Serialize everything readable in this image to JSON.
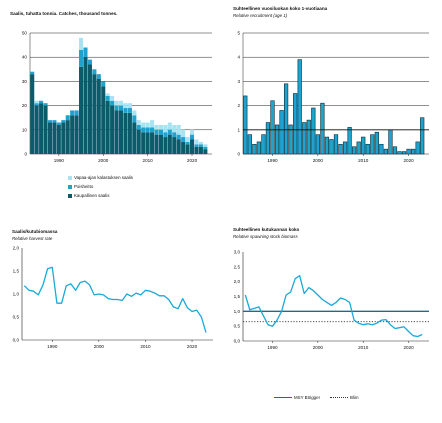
{
  "colors": {
    "commercial": "#0b5b6b",
    "discards": "#1fa2cc",
    "recreational": "#a8e3f1",
    "line": "#1aa9d8",
    "msy": "#1f6b8a",
    "blim": "#333333",
    "grid": "#222222"
  },
  "legends": {
    "catch": [
      "Vapaa-ajan kalastuksen saalis",
      "Poisheitto",
      "Kaupallinen saalis"
    ],
    "ssb": [
      "MSY Btrigger",
      "Blim"
    ]
  },
  "chart_data": [
    {
      "id": "catch",
      "type": "bar",
      "title": "Saalis, tuhatta tonnia. Catches, thousand tonnes.",
      "subtitle": "",
      "ylim": [
        0,
        50
      ],
      "yticks": [
        "0",
        "10",
        "20",
        "30",
        "40",
        "50"
      ],
      "xticks": [
        "1990",
        "2000",
        "2010",
        "2020"
      ],
      "xrange": [
        1983.5,
        2024.5
      ],
      "years": [
        1984,
        1985,
        1986,
        1987,
        1988,
        1989,
        1990,
        1991,
        1992,
        1993,
        1994,
        1995,
        1996,
        1997,
        1998,
        1999,
        2000,
        2001,
        2002,
        2003,
        2004,
        2005,
        2006,
        2007,
        2008,
        2009,
        2010,
        2011,
        2012,
        2013,
        2014,
        2015,
        2016,
        2017,
        2018,
        2019,
        2020,
        2021,
        2022,
        2023
      ],
      "series": [
        {
          "name": "Kaupallinen saalis",
          "values": [
            33,
            20,
            21,
            20,
            13,
            13,
            12,
            13,
            14,
            16,
            16,
            36,
            40,
            37,
            33,
            31,
            28,
            22,
            20,
            18,
            18,
            17,
            17,
            13,
            10,
            9,
            9,
            9,
            8,
            8,
            7,
            8,
            7,
            6,
            5,
            4,
            6,
            3,
            3,
            2
          ]
        },
        {
          "name": "Poisheitto",
          "values": [
            1,
            1,
            1,
            1,
            1,
            1,
            1,
            1,
            2,
            2,
            2,
            7,
            4,
            2,
            2,
            2,
            2,
            2,
            2,
            2,
            2,
            2,
            2,
            3,
            2,
            2,
            2,
            2,
            2,
            2,
            2,
            2,
            2,
            2,
            2,
            1,
            2,
            1,
            1,
            1
          ]
        },
        {
          "name": "Vapaa-ajan kalastuksen saalis",
          "values": [
            0,
            1,
            0,
            0,
            0,
            0,
            0,
            0,
            0,
            0,
            0,
            5,
            0,
            0,
            0,
            0,
            0,
            1,
            2,
            2,
            2,
            2,
            2,
            2,
            2,
            2,
            2,
            3,
            2,
            2,
            3,
            3,
            3,
            4,
            3,
            2,
            2,
            2,
            1,
            1
          ]
        }
      ]
    },
    {
      "id": "recruitment",
      "type": "bar",
      "title": "Suhteellinen vuosiluokan koko 1-vuotiaana",
      "subtitle": "Relative recruitment (age 1)",
      "ylim": [
        0,
        5
      ],
      "yticks": [
        "0",
        "1",
        "2",
        "3",
        "4",
        "5"
      ],
      "xticks": [
        "1990",
        "2000",
        "2010",
        "2020"
      ],
      "xrange": [
        1983.5,
        2024.5
      ],
      "years": [
        1984,
        1985,
        1986,
        1987,
        1988,
        1989,
        1990,
        1991,
        1992,
        1993,
        1994,
        1995,
        1996,
        1997,
        1998,
        1999,
        2000,
        2001,
        2002,
        2003,
        2004,
        2005,
        2006,
        2007,
        2008,
        2009,
        2010,
        2011,
        2012,
        2013,
        2014,
        2015,
        2016,
        2017,
        2018,
        2019,
        2020,
        2021,
        2022,
        2023
      ],
      "values": [
        2.4,
        0.8,
        0.4,
        0.5,
        0.8,
        1.3,
        2.2,
        1.2,
        1.8,
        2.9,
        1.2,
        2.5,
        3.9,
        1.3,
        1.4,
        1.9,
        0.8,
        2.1,
        0.7,
        0.6,
        0.8,
        0.4,
        0.5,
        1.1,
        0.3,
        0.5,
        0.7,
        0.4,
        0.8,
        0.9,
        0.4,
        0.2,
        1.0,
        0.3,
        0.1,
        0.1,
        0.2,
        0.2,
        0.5,
        1.5
      ],
      "reference": 1
    },
    {
      "id": "harvest",
      "type": "line",
      "title": "Saalis/kutubiomassa",
      "subtitle": "Relative harvest rate",
      "ylim": [
        0,
        2
      ],
      "yticks": [
        "0,0",
        "0,5",
        "1,0",
        "1,5",
        "2,0"
      ],
      "xticks": [
        "1990",
        "2000",
        "2010",
        "2020"
      ],
      "xrange": [
        1983.5,
        2024.5
      ],
      "x": [
        1984,
        1985,
        1986,
        1987,
        1988,
        1989,
        1990,
        1991,
        1992,
        1993,
        1994,
        1995,
        1996,
        1997,
        1998,
        1999,
        2000,
        2001,
        2002,
        2003,
        2004,
        2005,
        2006,
        2007,
        2008,
        2009,
        2010,
        2011,
        2012,
        2013,
        2014,
        2015,
        2016,
        2017,
        2018,
        2019,
        2020,
        2021,
        2022,
        2023
      ],
      "y": [
        1.18,
        1.08,
        1.06,
        0.98,
        1.2,
        1.55,
        1.58,
        0.8,
        0.8,
        1.18,
        1.22,
        1.08,
        1.25,
        1.28,
        1.2,
        0.98,
        1.0,
        0.98,
        0.9,
        0.88,
        0.88,
        0.86,
        1.0,
        0.95,
        1.02,
        0.98,
        1.08,
        1.06,
        1.02,
        0.96,
        0.96,
        0.88,
        0.72,
        0.68,
        0.9,
        0.7,
        0.62,
        0.65,
        0.5,
        0.16
      ]
    },
    {
      "id": "ssb",
      "type": "line",
      "title": "Suhteellinen kutukannan koko",
      "subtitle": "Relative spawning stock biomass",
      "ylim": [
        0,
        3
      ],
      "yticks": [
        "0,0",
        "0,5",
        "1,0",
        "1,5",
        "2,0",
        "2,5",
        "3,0"
      ],
      "xticks": [
        "1990",
        "2000",
        "2010",
        "2020"
      ],
      "xrange": [
        1983.5,
        2024.5
      ],
      "msy_btrigger": 1.0,
      "blim": 0.65,
      "x": [
        1984,
        1985,
        1986,
        1987,
        1988,
        1989,
        1990,
        1991,
        1992,
        1993,
        1994,
        1995,
        1996,
        1997,
        1998,
        1999,
        2000,
        2001,
        2002,
        2003,
        2004,
        2005,
        2006,
        2007,
        2008,
        2009,
        2010,
        2011,
        2012,
        2013,
        2014,
        2015,
        2016,
        2017,
        2018,
        2019,
        2020,
        2021,
        2022,
        2023
      ],
      "y": [
        1.55,
        1.05,
        1.1,
        1.15,
        0.85,
        0.55,
        0.5,
        0.7,
        1.0,
        1.55,
        1.65,
        2.1,
        2.2,
        1.6,
        1.8,
        1.7,
        1.55,
        1.4,
        1.3,
        1.2,
        1.3,
        1.45,
        1.4,
        1.3,
        0.7,
        0.6,
        0.55,
        0.58,
        0.55,
        0.6,
        0.7,
        0.72,
        0.55,
        0.42,
        0.45,
        0.48,
        0.32,
        0.18,
        0.15,
        0.22
      ]
    }
  ]
}
